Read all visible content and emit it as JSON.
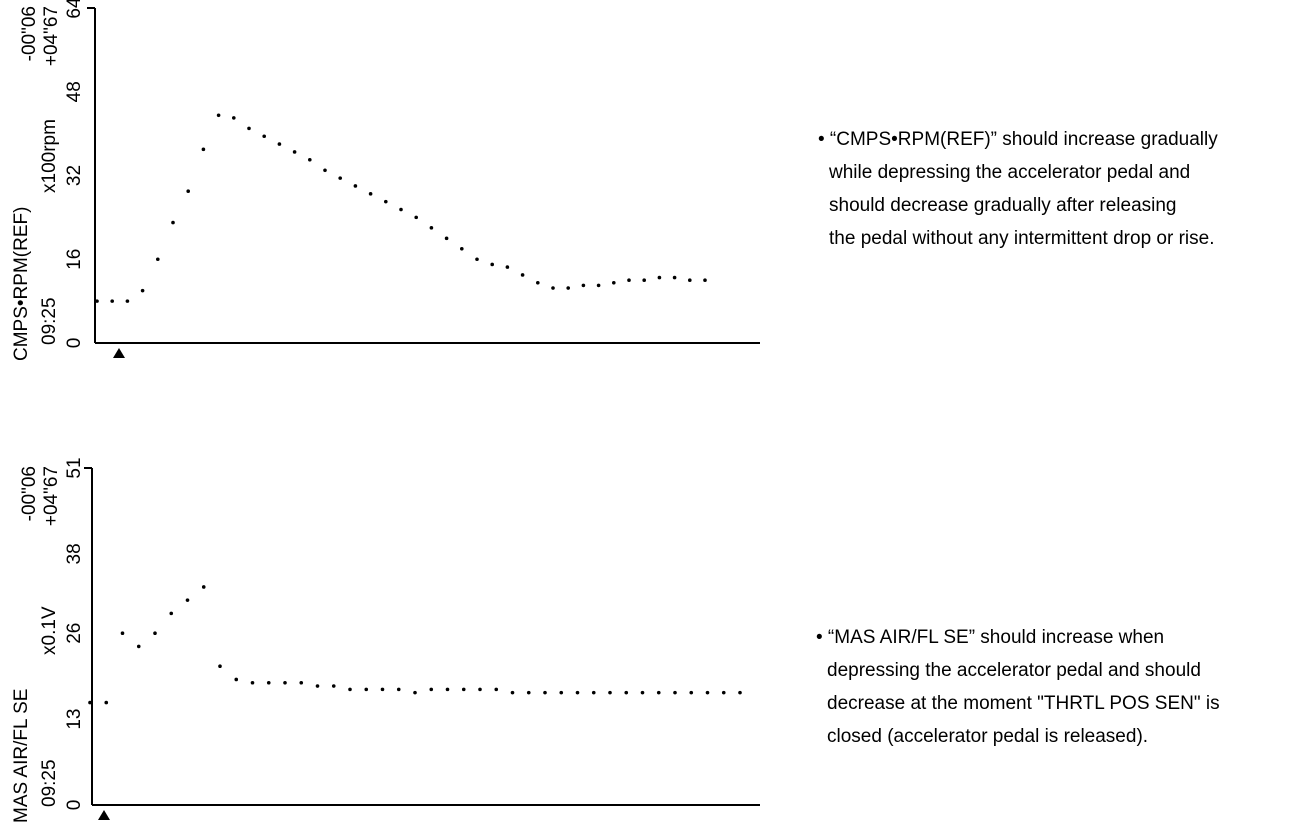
{
  "chart_data": [
    {
      "type": "line",
      "y_label": "CMPS•RPM(REF)",
      "unit_label": "x100rpm",
      "time_label": "09:25",
      "top_labels": [
        "-00\"06",
        "+04\"67"
      ],
      "ylim": [
        0,
        64
      ],
      "yticks": [
        0,
        16,
        32,
        48,
        64
      ],
      "series": [
        {
          "name": "CMPS•RPM(REF)",
          "color": "#000000",
          "values": [
            8,
            8,
            8,
            10,
            16,
            23,
            29,
            37,
            43.5,
            43,
            41,
            39.5,
            38,
            36.5,
            35,
            33,
            31.5,
            30,
            28.5,
            27,
            25.5,
            24,
            22,
            20,
            18,
            16,
            15,
            14.5,
            13,
            11.5,
            10.5,
            10.5,
            11,
            11,
            11.5,
            12,
            12,
            12.5,
            12.5,
            12,
            12
          ]
        }
      ],
      "annotation": [
        "• “CMPS•RPM(REF)” should increase gradually",
        "while depressing the accelerator pedal and",
        "should decrease gradually after releasing",
        "the pedal without any intermittent drop or rise."
      ]
    },
    {
      "type": "line",
      "y_label": "MAS AIR/FL SE",
      "unit_label": "x0.1V",
      "time_label": "09:25",
      "top_labels": [
        "-00\"06",
        "+04\"67"
      ],
      "ylim": [
        0,
        51
      ],
      "yticks": [
        0,
        13,
        26,
        38,
        51
      ],
      "series": [
        {
          "name": "MAS AIR/FL SE",
          "color": "#000000",
          "values": [
            15.5,
            15.5,
            26,
            24,
            26,
            29,
            31,
            33,
            21,
            19,
            18.5,
            18.5,
            18.5,
            18.5,
            18,
            18,
            17.5,
            17.5,
            17.5,
            17.5,
            17,
            17.5,
            17.5,
            17.5,
            17.5,
            17.5,
            17,
            17,
            17,
            17,
            17,
            17,
            17,
            17,
            17,
            17,
            17,
            17,
            17,
            17,
            17
          ]
        }
      ],
      "annotation": [
        "• “MAS AIR/FL SE” should increase when",
        "depressing the accelerator pedal and should",
        "decrease at the moment \"THRTL POS SEN\" is",
        "closed (accelerator pedal is released)."
      ]
    }
  ]
}
